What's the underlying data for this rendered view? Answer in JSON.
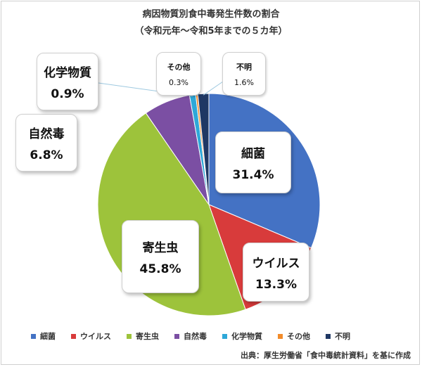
{
  "chart_data": {
    "type": "pie",
    "title": "病因物質別食中毒発生件数の割合",
    "subtitle": "（令和元年～令和5年までの５カ年）",
    "categories": [
      "細菌",
      "ウイルス",
      "寄生虫",
      "自然毒",
      "化学物質",
      "その他",
      "不明"
    ],
    "values": [
      31.4,
      13.3,
      45.8,
      6.8,
      0.9,
      0.3,
      1.6
    ],
    "value_labels": [
      "31.4%",
      "13.3%",
      "45.8%",
      "6.8%",
      "0.9%",
      "0.3%",
      "1.6%"
    ],
    "colors": [
      "#4472c4",
      "#d83b3b",
      "#9dc33b",
      "#7b4fa3",
      "#2ea8d8",
      "#f28b2a",
      "#1f3864"
    ],
    "start_angle_deg": 0,
    "direction": "clockwise",
    "legend": "bottom"
  },
  "source": "出典：厚生労働省「食中毒統計資料」を基に作成"
}
